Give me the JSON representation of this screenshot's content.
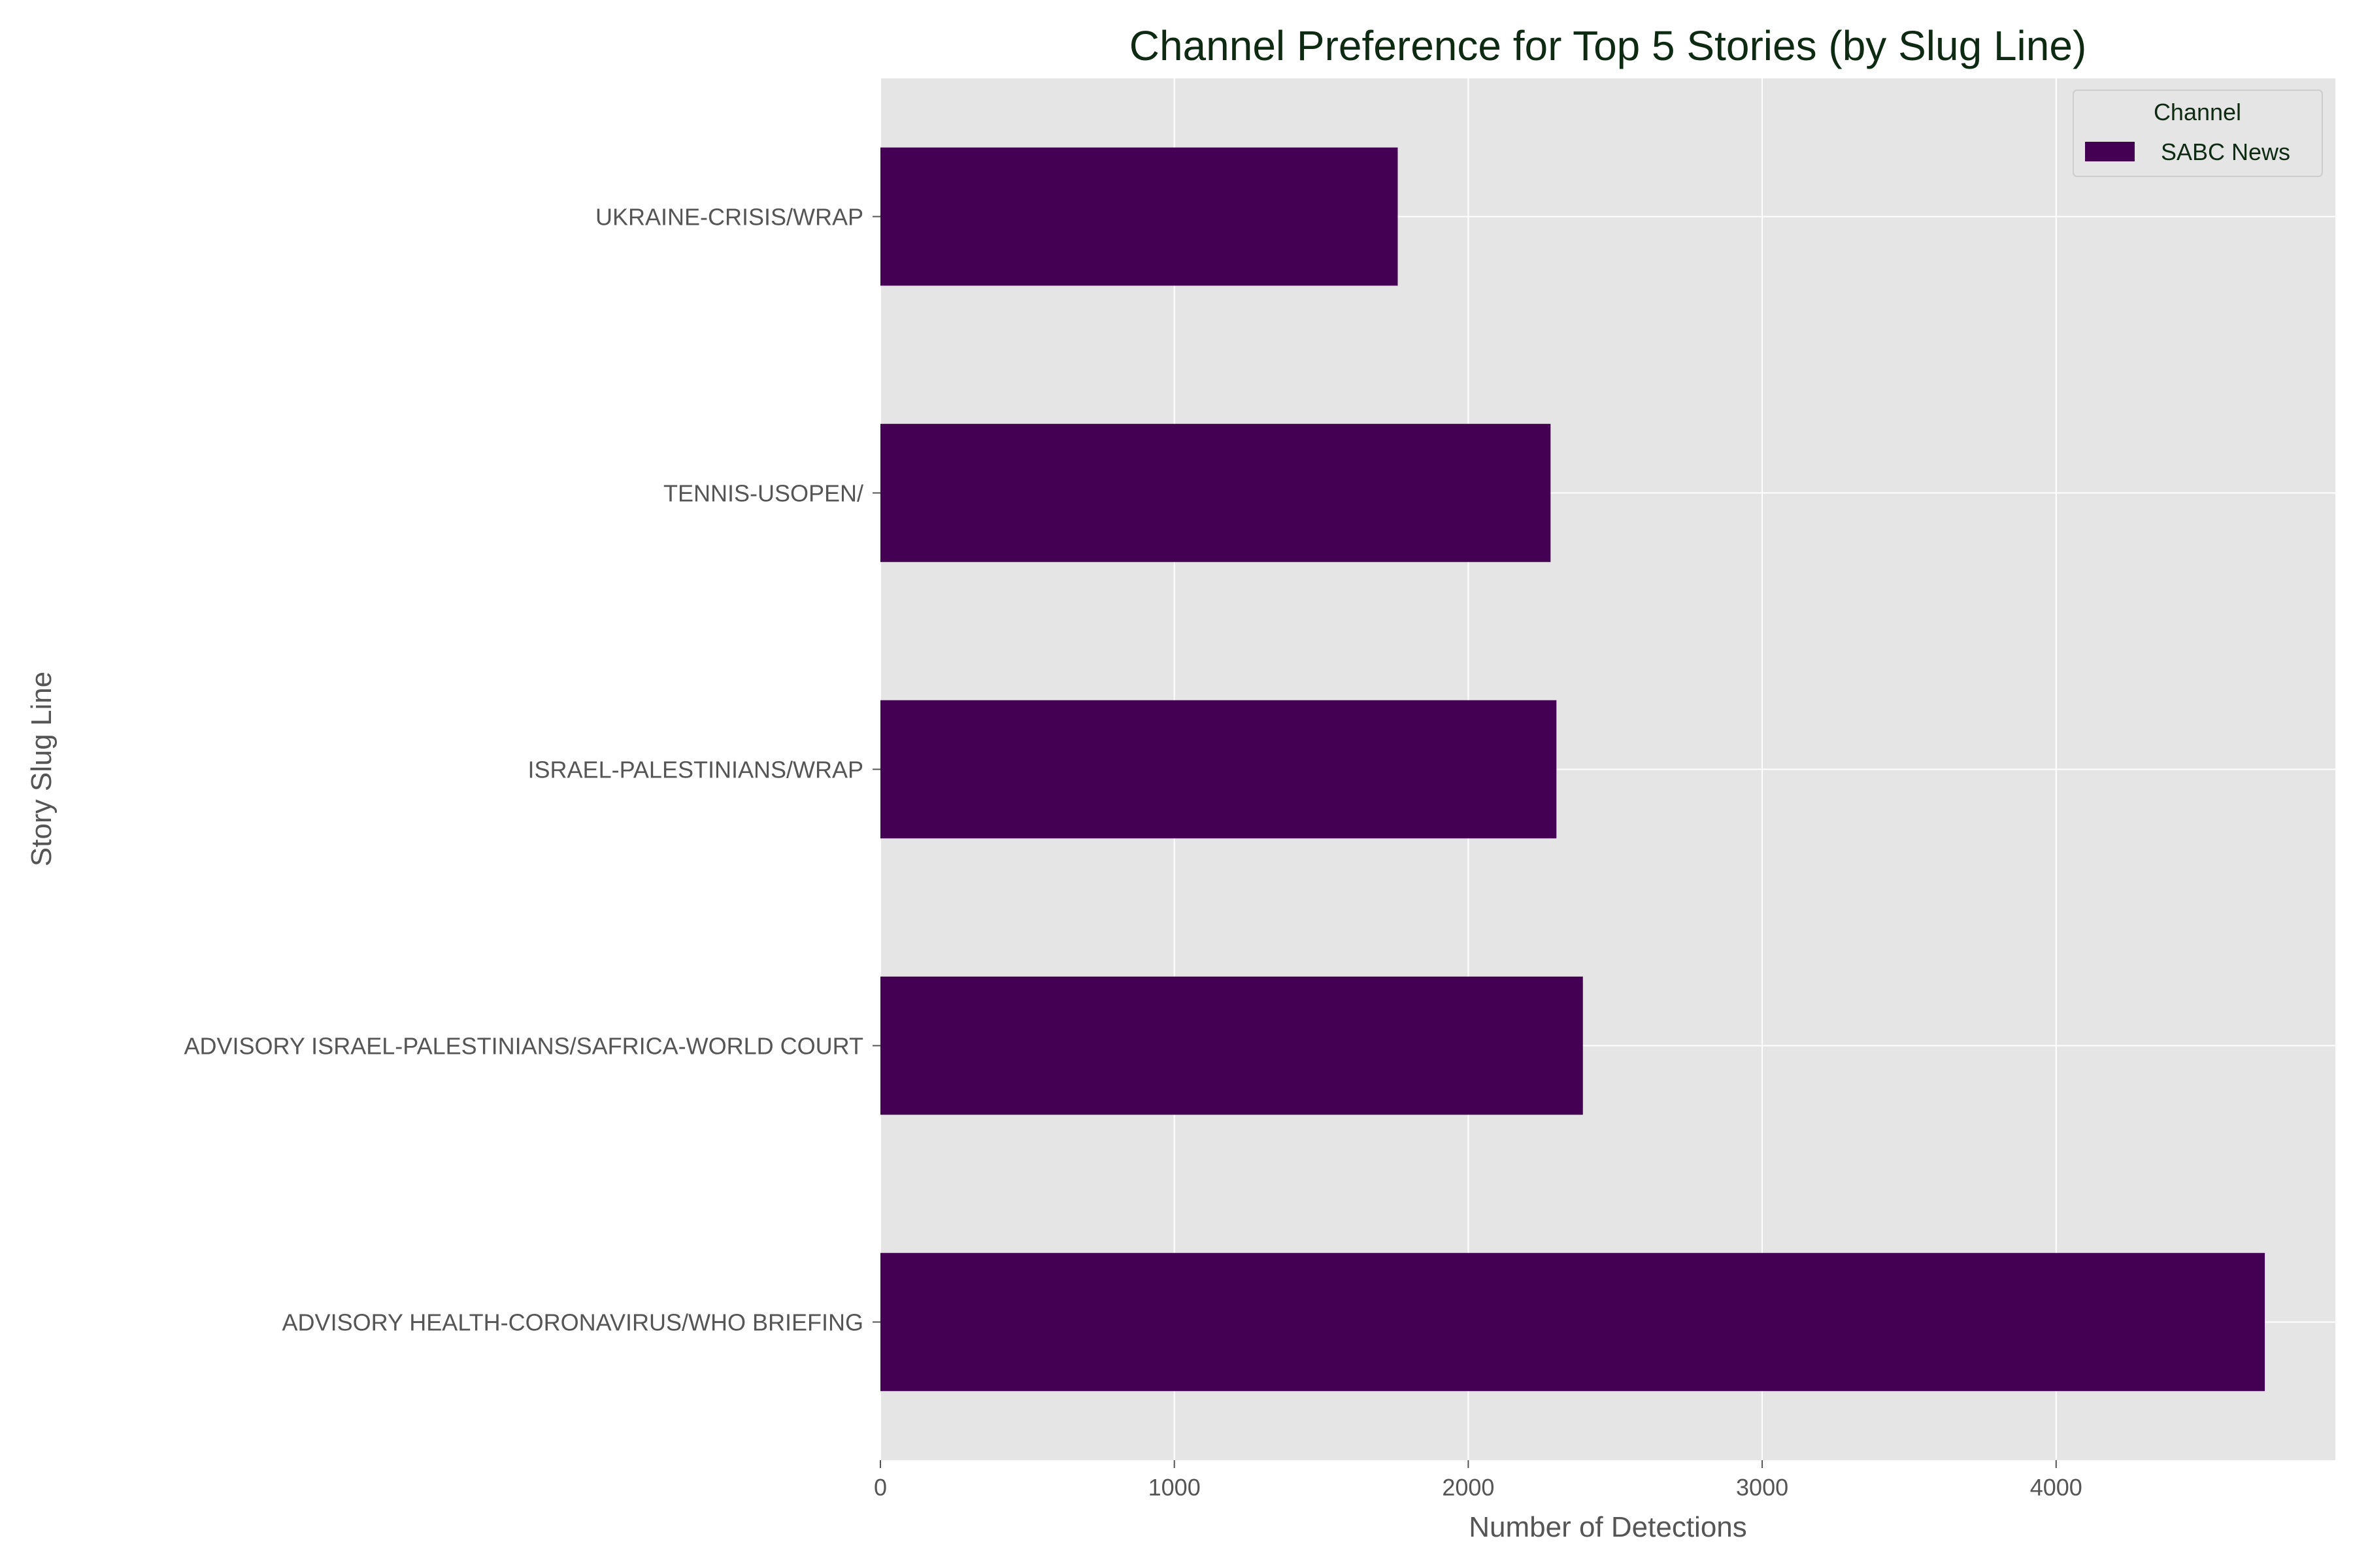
{
  "chart_data": {
    "type": "bar",
    "orientation": "horizontal",
    "title": "Channel Preference for Top 5 Stories (by Slug Line)",
    "xlabel": "Number of Detections",
    "ylabel": "Story Slug Line",
    "categories": [
      "ADVISORY HEALTH-CORONAVIRUS/WHO BRIEFING",
      "ADVISORY ISRAEL-PALESTINIANS/SAFRICA-WORLD COURT",
      "ISRAEL-PALESTINIANS/WRAP",
      "TENNIS-USOPEN/",
      "UKRAINE-CRISIS/WRAP"
    ],
    "series": [
      {
        "name": "SABC News",
        "color": "#440154",
        "values": [
          4710,
          2390,
          2300,
          2280,
          1760
        ]
      }
    ],
    "xlim": [
      0,
      4950
    ],
    "xticks": [
      0,
      1000,
      2000,
      3000,
      4000
    ],
    "grid": true,
    "legend": {
      "title": "Channel",
      "placement": "top-right"
    },
    "background": "#e5e5e5",
    "grid_color": "#ffffff"
  }
}
